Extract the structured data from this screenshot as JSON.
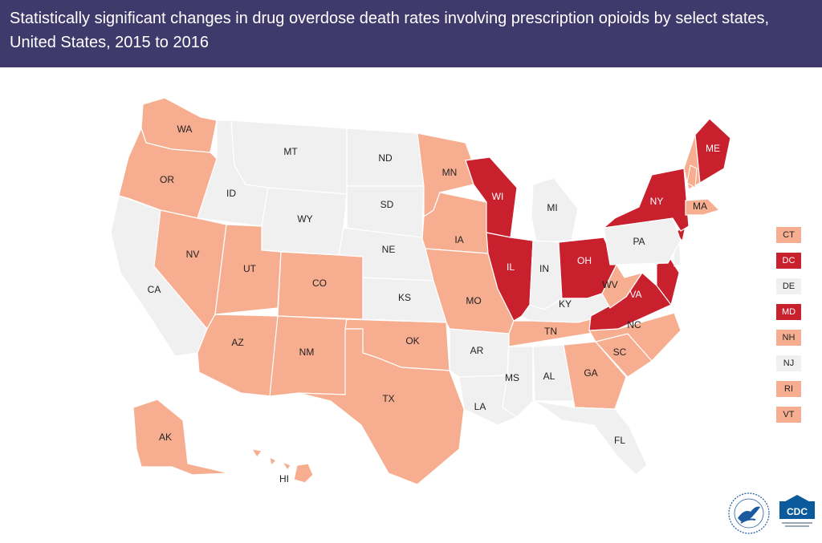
{
  "title": "Statistically significant changes in drug overdose death rates involving prescription opioids by select states, United States, 2015 to 2016",
  "colors": {
    "header_bg": "#3f3a6b",
    "increase": "#f7ae90",
    "large_increase": "#c8202d",
    "no_change": "#f0f0f0",
    "border": "#ffffff"
  },
  "states": [
    {
      "code": "WA",
      "category": "increase"
    },
    {
      "code": "OR",
      "category": "increase"
    },
    {
      "code": "CA",
      "category": "no_change"
    },
    {
      "code": "NV",
      "category": "increase"
    },
    {
      "code": "ID",
      "category": "no_change"
    },
    {
      "code": "MT",
      "category": "no_change"
    },
    {
      "code": "WY",
      "category": "no_change"
    },
    {
      "code": "UT",
      "category": "increase"
    },
    {
      "code": "CO",
      "category": "increase"
    },
    {
      "code": "AZ",
      "category": "increase"
    },
    {
      "code": "NM",
      "category": "increase"
    },
    {
      "code": "ND",
      "category": "no_change"
    },
    {
      "code": "SD",
      "category": "no_change"
    },
    {
      "code": "NE",
      "category": "no_change"
    },
    {
      "code": "KS",
      "category": "no_change"
    },
    {
      "code": "OK",
      "category": "increase"
    },
    {
      "code": "TX",
      "category": "increase"
    },
    {
      "code": "MN",
      "category": "increase"
    },
    {
      "code": "IA",
      "category": "increase"
    },
    {
      "code": "MO",
      "category": "increase"
    },
    {
      "code": "AR",
      "category": "no_change"
    },
    {
      "code": "LA",
      "category": "no_change"
    },
    {
      "code": "WI",
      "category": "large_increase"
    },
    {
      "code": "IL",
      "category": "large_increase"
    },
    {
      "code": "MI",
      "category": "no_change"
    },
    {
      "code": "IN",
      "category": "no_change"
    },
    {
      "code": "OH",
      "category": "large_increase"
    },
    {
      "code": "KY",
      "category": "no_change"
    },
    {
      "code": "TN",
      "category": "increase"
    },
    {
      "code": "MS",
      "category": "no_change"
    },
    {
      "code": "AL",
      "category": "no_change"
    },
    {
      "code": "GA",
      "category": "increase"
    },
    {
      "code": "FL",
      "category": "no_change"
    },
    {
      "code": "SC",
      "category": "increase"
    },
    {
      "code": "NC",
      "category": "increase"
    },
    {
      "code": "VA",
      "category": "large_increase"
    },
    {
      "code": "WV",
      "category": "increase"
    },
    {
      "code": "PA",
      "category": "no_change"
    },
    {
      "code": "NY",
      "category": "large_increase"
    },
    {
      "code": "ME",
      "category": "large_increase"
    },
    {
      "code": "MA",
      "category": "increase"
    },
    {
      "code": "AK",
      "category": "increase"
    },
    {
      "code": "HI",
      "category": "increase"
    }
  ],
  "legend": [
    {
      "code": "CT",
      "category": "increase"
    },
    {
      "code": "DC",
      "category": "large_increase"
    },
    {
      "code": "DE",
      "category": "no_change"
    },
    {
      "code": "MD",
      "category": "large_increase"
    },
    {
      "code": "NH",
      "category": "increase"
    },
    {
      "code": "NJ",
      "category": "no_change"
    },
    {
      "code": "RI",
      "category": "increase"
    },
    {
      "code": "VT",
      "category": "increase"
    }
  ],
  "logos": {
    "cdc_text": "CDC",
    "cdc_color": "#0a5a9c",
    "hhs_color": "#1b5aa0"
  }
}
